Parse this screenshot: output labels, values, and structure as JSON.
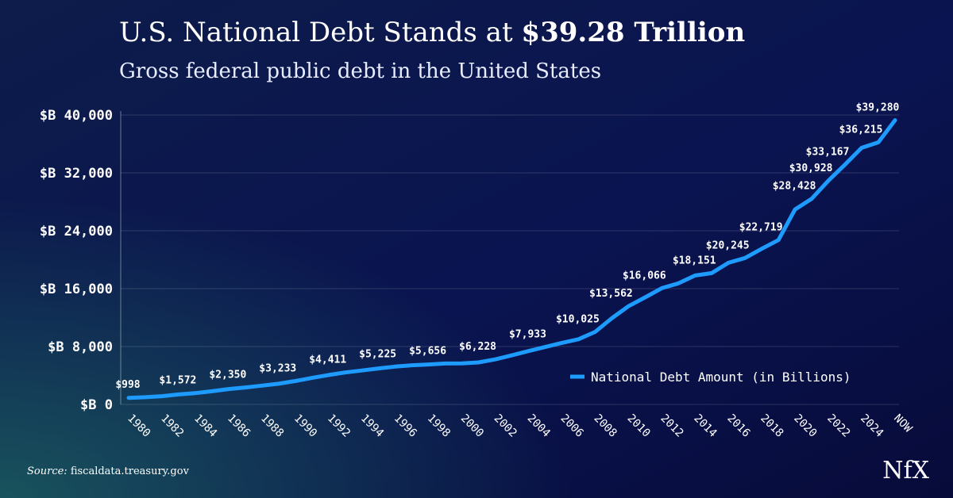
{
  "chart_data": {
    "type": "line",
    "title": "U.S. National Debt Stands at",
    "title_highlight": "$39.28 Trillion",
    "subtitle": "Gross federal public debt in the United States",
    "source_label": "Source:",
    "source": "fiscaldata.treasury.gov",
    "logo": "NfX",
    "categories": [
      "1980",
      null,
      "1982",
      null,
      "1984",
      null,
      "1986",
      null,
      "1988",
      null,
      "1990",
      null,
      "1992",
      null,
      "1994",
      null,
      "1996",
      null,
      "1998",
      null,
      "2000",
      null,
      "2002",
      null,
      "2004",
      null,
      "2006",
      null,
      "2008",
      null,
      "2010",
      null,
      "2012",
      null,
      "2014",
      null,
      "2016",
      null,
      "2018",
      null,
      "2020",
      null,
      "2022",
      null,
      "2024",
      null,
      "NOW"
    ],
    "series": [
      {
        "name": "National Debt Amount (in Billions)",
        "color": "#1e9bff",
        "values": [
          908,
          998,
          1142,
          1377,
          1572,
          1823,
          2125,
          2350,
          2602,
          2857,
          3233,
          3665,
          4065,
          4411,
          4693,
          4974,
          5225,
          5413,
          5526,
          5656,
          5674,
          5807,
          6228,
          6783,
          7379,
          7933,
          8507,
          9008,
          10025,
          11910,
          13562,
          14790,
          16066,
          16738,
          17824,
          18151,
          19573,
          20245,
          21516,
          22719,
          26945,
          28428,
          30928,
          33167,
          35465,
          36215,
          39280
        ],
        "value_labels": [
          null,
          "$998",
          null,
          null,
          "$1,572",
          null,
          null,
          "$2,350",
          null,
          null,
          "$3,233",
          null,
          null,
          "$4,411",
          null,
          null,
          "$5,225",
          null,
          null,
          "$5,656",
          null,
          null,
          "$6,228",
          null,
          null,
          "$7,933",
          null,
          null,
          "$10,025",
          null,
          "$13,562",
          null,
          "$16,066",
          null,
          null,
          "$18,151",
          null,
          "$20,245",
          null,
          "$22,719",
          null,
          "$28,428",
          "$30,928",
          "$33,167",
          null,
          "$36,215",
          "$39,280"
        ]
      }
    ],
    "ylim": [
      0,
      40000
    ],
    "yticks": [
      {
        "value": 0,
        "label": "$B 0"
      },
      {
        "value": 8000,
        "label": "$B 8,000"
      },
      {
        "value": 16000,
        "label": "$B 16,000"
      },
      {
        "value": 24000,
        "label": "$B 24,000"
      },
      {
        "value": 32000,
        "label": "$B 32,000"
      },
      {
        "value": 40000,
        "label": "$B 40,000"
      }
    ],
    "grid": true,
    "legend": "lower right"
  }
}
